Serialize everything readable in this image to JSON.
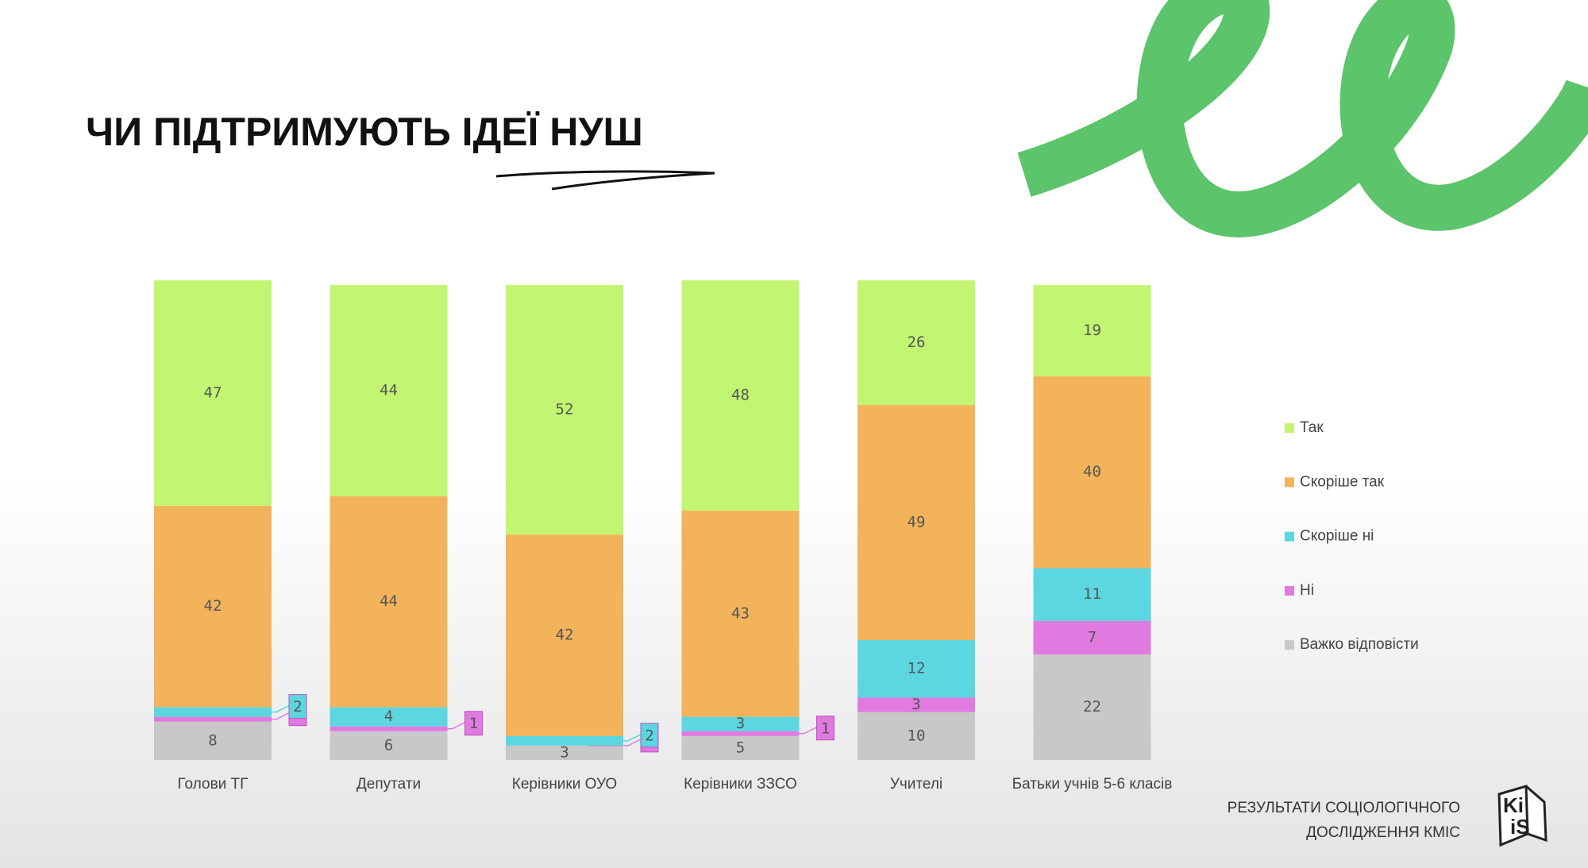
{
  "chart_data": {
    "type": "stacked_bar",
    "title": "ЧИ ПІДТРИМУЮТЬ ІДЕЇ НУШ",
    "categories": [
      "Голови ТГ",
      "Депутати",
      "Керівники ОУО",
      "Керівники ЗЗСО",
      "Учителі",
      "Батьки учнів 5-6 класів"
    ],
    "series": [
      {
        "name": "Так",
        "color": "#c2f571",
        "values": [
          47,
          44,
          52,
          48,
          26,
          19
        ]
      },
      {
        "name": "Скоріше так",
        "color": "#f2b35b",
        "values": [
          42,
          44,
          42,
          43,
          49,
          40
        ]
      },
      {
        "name": "Скоріше ні",
        "color": "#5cd6e0",
        "values": [
          2,
          4,
          2,
          3,
          12,
          11
        ]
      },
      {
        "name": "Ні",
        "color": "#e07ae0",
        "values": [
          1,
          1,
          0,
          1,
          3,
          7
        ]
      },
      {
        "name": "Важко відповісти",
        "color": "#c8c8c8",
        "values": [
          8,
          6,
          3,
          5,
          10,
          22
        ]
      }
    ],
    "ylim": [
      0,
      100
    ],
    "legend": "right"
  },
  "footer": {
    "lines": [
      "РЕЗУЛЬТАТИ СОЦІОЛОГІЧНОГО",
      "ДОСЛІДЖЕННЯ КМІС"
    ],
    "logo": [
      "Ki",
      "iS"
    ]
  }
}
